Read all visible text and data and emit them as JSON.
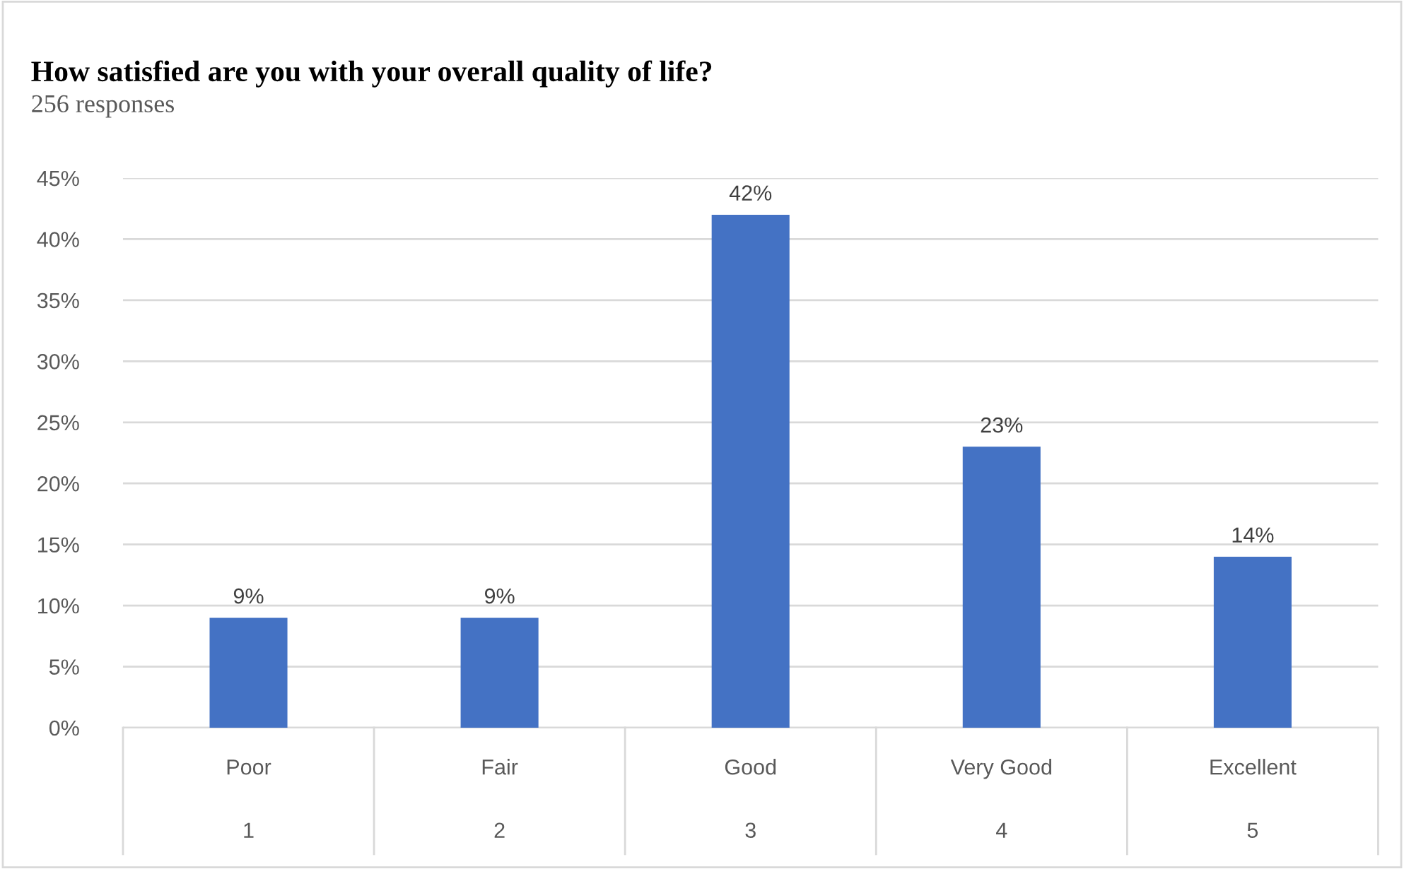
{
  "chart_data": {
    "type": "bar",
    "title": "How satisfied are you with your overall quality of life?",
    "subtitle": "256 responses",
    "categories": [
      "Poor\n1",
      "Fair\n2",
      "Good\n3",
      "Very Good\n4",
      "Excellent\n5"
    ],
    "values": [
      9,
      9,
      42,
      23,
      14
    ],
    "color": "#4472c4",
    "value_labels": [
      "9%",
      "9%",
      "42%",
      "23%",
      "14%"
    ],
    "ylim": [
      0,
      45
    ],
    "yticks": [
      {
        "value": 0,
        "label": "0%"
      },
      {
        "value": 5,
        "label": "5%"
      },
      {
        "value": 10,
        "label": "10%"
      },
      {
        "value": 15,
        "label": "15%"
      },
      {
        "value": 20,
        "label": "20%"
      },
      {
        "value": 25,
        "label": "25%"
      },
      {
        "value": 30,
        "label": "30%"
      },
      {
        "value": 35,
        "label": "35%"
      },
      {
        "value": 40,
        "label": "40%"
      },
      {
        "value": 45,
        "label": "45%"
      }
    ],
    "grid": "y"
  }
}
